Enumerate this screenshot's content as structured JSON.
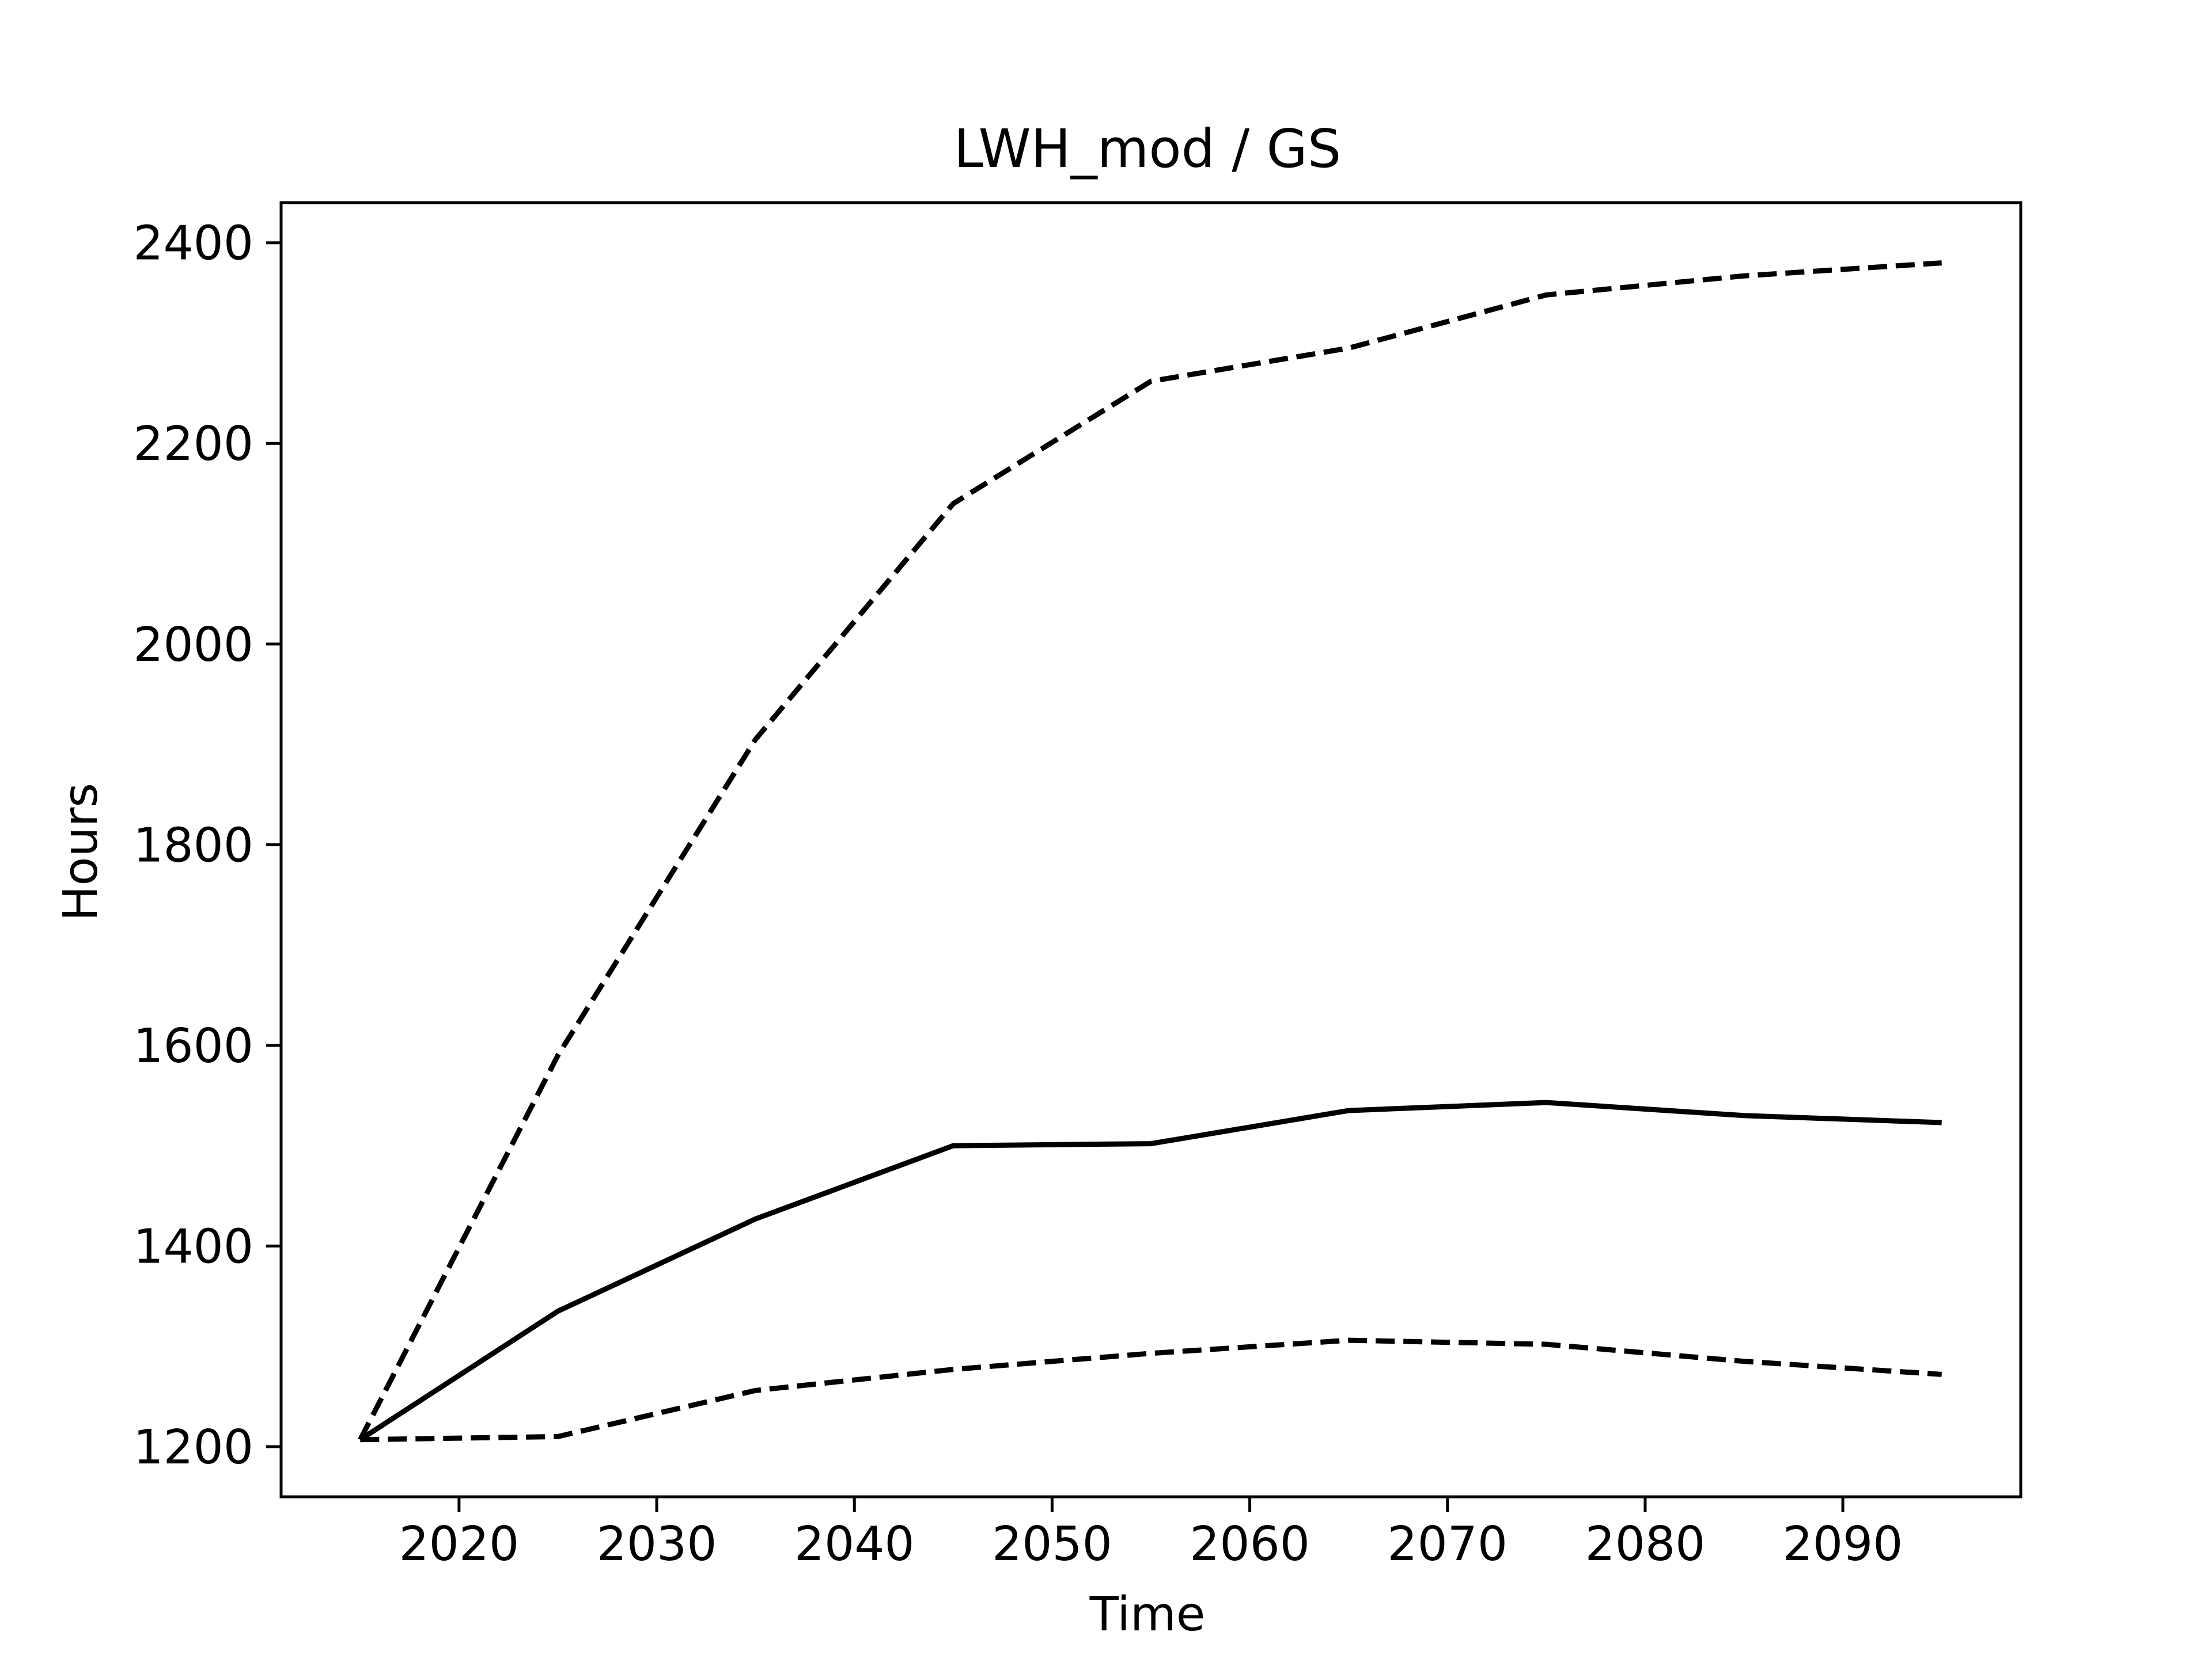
{
  "chart_data": {
    "type": "line",
    "title": "LWH_mod / GS",
    "xlabel": "Time",
    "ylabel": "Hours",
    "x": [
      2015,
      2025,
      2035,
      2045,
      2055,
      2065,
      2075,
      2085,
      2095
    ],
    "xlim": [
      2011,
      2099
    ],
    "ylim": [
      1150,
      2440
    ],
    "xticks": [
      "2020",
      "2030",
      "2040",
      "2050",
      "2060",
      "2070",
      "2080",
      "2090"
    ],
    "yticks": [
      "1200",
      "1400",
      "1600",
      "1800",
      "2000",
      "2200",
      "2400"
    ],
    "grid": false,
    "legend": "none",
    "color": "#000000",
    "series": [
      {
        "style": "dashed",
        "values": [
          1207,
          1590,
          1905,
          2140,
          2262,
          2295,
          2348,
          2367,
          2380
        ]
      },
      {
        "style": "solid",
        "values": [
          1207,
          1335,
          1427,
          1500,
          1502,
          1535,
          1543,
          1530,
          1523
        ]
      },
      {
        "style": "dashed",
        "values": [
          1207,
          1210,
          1256,
          1277,
          1293,
          1306,
          1302,
          1285,
          1272
        ]
      }
    ]
  }
}
